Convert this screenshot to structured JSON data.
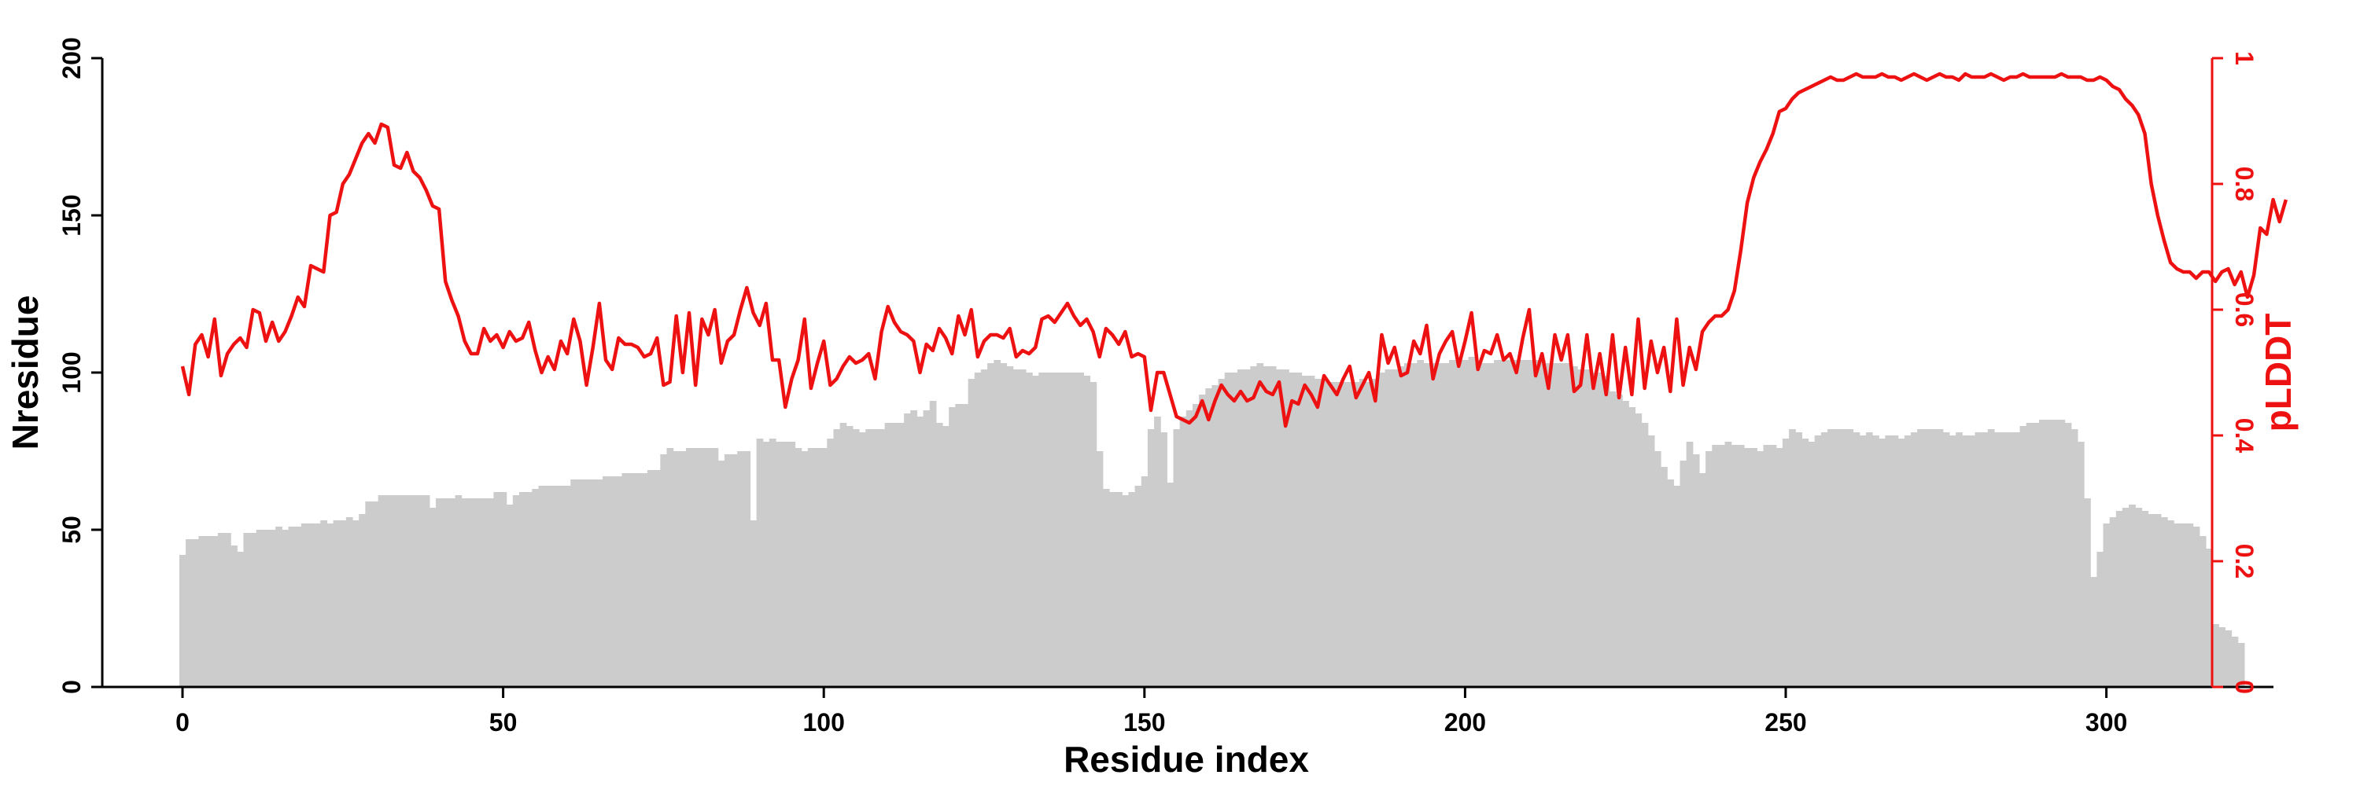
{
  "chart_data": {
    "type": "bar",
    "xlabel": "Residue index",
    "ylabel": "Nresidue",
    "y2label": "pLDDT",
    "xlim": [
      -12,
      325
    ],
    "ylim": [
      0,
      200
    ],
    "y2lim": [
      0,
      1
    ],
    "xticks": [
      "0",
      "50",
      "100",
      "150",
      "200",
      "250",
      "300"
    ],
    "xtick_values": [
      0,
      50,
      100,
      150,
      200,
      250,
      300
    ],
    "yticks": [
      "0",
      "50",
      "100",
      "150",
      "200"
    ],
    "ytick_values": [
      0,
      50,
      100,
      150,
      200
    ],
    "y2ticks": [
      "0",
      "0.2",
      "0.4",
      "0.6",
      "0.8",
      "1"
    ],
    "y2tick_values": [
      0,
      0.2,
      0.4,
      0.6,
      0.8,
      1
    ],
    "grid": false,
    "colors": {
      "bars": "#cccccc",
      "plddt_line": "#ee1111",
      "left_axis": "#000000",
      "right_axis": "#ee1111"
    },
    "series": [
      {
        "kind": "bar",
        "axis": "left",
        "x_start": 0,
        "values": [
          42,
          47,
          47,
          48,
          48,
          48,
          49,
          49,
          45,
          43,
          49,
          49,
          50,
          50,
          50,
          51,
          50,
          51,
          51,
          52,
          52,
          52,
          53,
          52,
          53,
          53,
          54,
          53,
          55,
          59,
          59,
          61,
          61,
          61,
          61,
          61,
          61,
          61,
          61,
          57,
          60,
          60,
          60,
          61,
          60,
          60,
          60,
          60,
          60,
          62,
          62,
          58,
          61,
          62,
          62,
          63,
          64,
          64,
          64,
          64,
          64,
          66,
          66,
          66,
          66,
          66,
          67,
          67,
          67,
          68,
          68,
          68,
          68,
          69,
          69,
          74,
          76,
          75,
          75,
          76,
          76,
          76,
          76,
          76,
          72,
          74,
          74,
          75,
          75,
          53,
          79,
          78,
          79,
          78,
          78,
          78,
          76,
          75,
          76,
          76,
          76,
          79,
          82,
          84,
          83,
          82,
          81,
          82,
          82,
          82,
          84,
          84,
          84,
          87,
          88,
          86,
          88,
          91,
          84,
          83,
          89,
          90,
          90,
          98,
          100,
          101,
          103,
          104,
          103,
          102,
          101,
          101,
          100,
          99,
          100,
          100,
          100,
          100,
          100,
          100,
          100,
          99,
          97,
          75,
          63,
          62,
          62,
          61,
          62,
          64,
          67,
          82,
          86,
          81,
          65,
          82,
          86,
          88,
          90,
          93,
          95,
          96,
          98,
          100,
          100,
          101,
          101,
          102,
          103,
          102,
          102,
          101,
          101,
          100,
          100,
          99,
          99,
          98,
          98,
          97,
          97,
          97,
          97,
          97,
          98,
          97,
          98,
          100,
          101,
          101,
          102,
          103,
          103,
          104,
          103,
          103,
          103,
          103,
          104,
          104,
          104,
          105,
          103,
          103,
          103,
          104,
          104,
          104,
          104,
          104,
          104,
          104,
          104,
          103,
          103,
          103,
          103,
          102,
          101,
          101,
          100,
          100,
          99,
          94,
          93,
          91,
          89,
          87,
          84,
          80,
          75,
          70,
          66,
          64,
          72,
          78,
          74,
          68,
          75,
          77,
          77,
          78,
          77,
          77,
          76,
          76,
          75,
          77,
          77,
          76,
          79,
          82,
          81,
          79,
          78,
          80,
          81,
          82,
          82,
          82,
          82,
          81,
          80,
          81,
          80,
          79,
          80,
          80,
          79,
          80,
          81,
          82,
          82,
          82,
          82,
          81,
          80,
          81,
          80,
          80,
          81,
          81,
          82,
          81,
          81,
          81,
          81,
          83,
          84,
          84,
          85,
          85,
          85,
          85,
          84,
          82,
          78,
          60,
          35,
          43,
          52,
          54,
          56,
          57,
          58,
          57,
          56,
          55,
          55,
          54,
          53,
          52,
          52,
          52,
          51,
          48,
          44,
          20,
          19,
          18,
          16,
          14
        ]
      },
      {
        "kind": "line",
        "axis": "right",
        "x_start": 0,
        "values": [
          0.51,
          0.465,
          0.545,
          0.56,
          0.525,
          0.585,
          0.495,
          0.53,
          0.545,
          0.555,
          0.54,
          0.6,
          0.595,
          0.55,
          0.58,
          0.55,
          0.565,
          0.59,
          0.62,
          0.605,
          0.67,
          0.665,
          0.66,
          0.75,
          0.755,
          0.8,
          0.815,
          0.84,
          0.865,
          0.88,
          0.865,
          0.895,
          0.89,
          0.83,
          0.825,
          0.85,
          0.82,
          0.81,
          0.79,
          0.765,
          0.76,
          0.645,
          0.615,
          0.59,
          0.55,
          0.53,
          0.53,
          0.57,
          0.55,
          0.56,
          0.54,
          0.565,
          0.55,
          0.555,
          0.58,
          0.535,
          0.5,
          0.525,
          0.505,
          0.55,
          0.53,
          0.585,
          0.55,
          0.48,
          0.54,
          0.61,
          0.52,
          0.505,
          0.555,
          0.545,
          0.545,
          0.54,
          0.525,
          0.53,
          0.555,
          0.48,
          0.485,
          0.59,
          0.5,
          0.595,
          0.48,
          0.585,
          0.56,
          0.6,
          0.515,
          0.55,
          0.56,
          0.6,
          0.635,
          0.595,
          0.575,
          0.61,
          0.52,
          0.52,
          0.445,
          0.49,
          0.52,
          0.585,
          0.475,
          0.515,
          0.55,
          0.48,
          0.49,
          0.51,
          0.525,
          0.515,
          0.52,
          0.53,
          0.49,
          0.565,
          0.605,
          0.58,
          0.565,
          0.56,
          0.55,
          0.5,
          0.545,
          0.535,
          0.57,
          0.555,
          0.53,
          0.59,
          0.56,
          0.6,
          0.525,
          0.55,
          0.56,
          0.56,
          0.555,
          0.57,
          0.525,
          0.535,
          0.53,
          0.54,
          0.585,
          0.59,
          0.58,
          0.595,
          0.61,
          0.59,
          0.575,
          0.585,
          0.565,
          0.525,
          0.57,
          0.56,
          0.545,
          0.565,
          0.525,
          0.53,
          0.525,
          0.44,
          0.5,
          0.5,
          0.465,
          0.43,
          0.425,
          0.42,
          0.43,
          0.455,
          0.425,
          0.455,
          0.48,
          0.465,
          0.455,
          0.47,
          0.455,
          0.46,
          0.485,
          0.47,
          0.465,
          0.485,
          0.415,
          0.455,
          0.45,
          0.48,
          0.465,
          0.445,
          0.495,
          0.48,
          0.465,
          0.49,
          0.51,
          0.46,
          0.48,
          0.5,
          0.455,
          0.56,
          0.515,
          0.54,
          0.495,
          0.5,
          0.55,
          0.53,
          0.575,
          0.49,
          0.53,
          0.55,
          0.565,
          0.51,
          0.55,
          0.595,
          0.505,
          0.535,
          0.53,
          0.56,
          0.52,
          0.53,
          0.5,
          0.555,
          0.6,
          0.495,
          0.53,
          0.475,
          0.56,
          0.52,
          0.56,
          0.47,
          0.48,
          0.56,
          0.475,
          0.53,
          0.465,
          0.56,
          0.46,
          0.54,
          0.465,
          0.585,
          0.475,
          0.55,
          0.5,
          0.54,
          0.47,
          0.585,
          0.48,
          0.54,
          0.505,
          0.565,
          0.58,
          0.59,
          0.59,
          0.6,
          0.63,
          0.695,
          0.77,
          0.81,
          0.835,
          0.855,
          0.88,
          0.915,
          0.92,
          0.935,
          0.945,
          0.95,
          0.955,
          0.96,
          0.965,
          0.97,
          0.965,
          0.965,
          0.97,
          0.975,
          0.97,
          0.97,
          0.97,
          0.975,
          0.97,
          0.97,
          0.965,
          0.97,
          0.975,
          0.97,
          0.965,
          0.97,
          0.975,
          0.97,
          0.97,
          0.965,
          0.975,
          0.97,
          0.97,
          0.97,
          0.975,
          0.97,
          0.965,
          0.97,
          0.97,
          0.975,
          0.97,
          0.97,
          0.97,
          0.97,
          0.97,
          0.975,
          0.97,
          0.97,
          0.97,
          0.965,
          0.965,
          0.97,
          0.965,
          0.955,
          0.95,
          0.935,
          0.925,
          0.91,
          0.88,
          0.8,
          0.75,
          0.71,
          0.675,
          0.665,
          0.66,
          0.66,
          0.65,
          0.66,
          0.66,
          0.645,
          0.66,
          0.665,
          0.64,
          0.66,
          0.62,
          0.655,
          0.73,
          0.72,
          0.775,
          0.74,
          0.775
        ]
      }
    ]
  }
}
